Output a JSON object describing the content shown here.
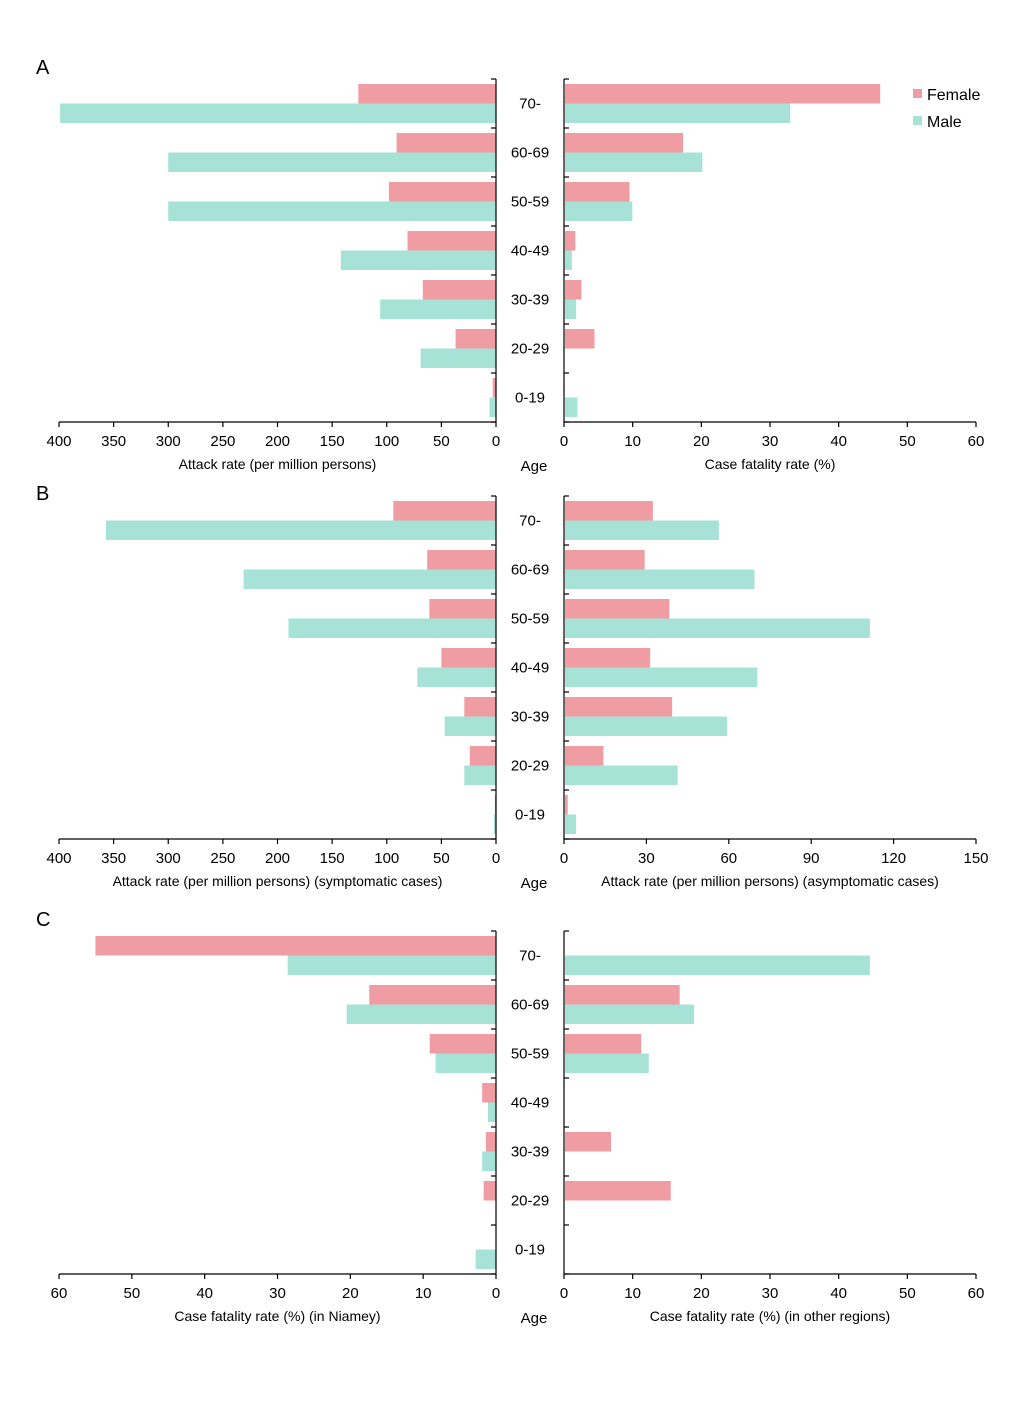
{
  "colors": {
    "female": "#f09ca3",
    "male": "#a6e3d6",
    "axis": "#000000"
  },
  "legend": {
    "female": "Female",
    "male": "Male"
  },
  "chart_data": [
    {
      "panel": "A",
      "type": "bar",
      "orientation": "horizontal-butterfly",
      "categories": [
        "70-",
        "60-69",
        "50-59",
        "40-49",
        "30-39",
        "20-29",
        "0-19"
      ],
      "center_label": "Age",
      "left": {
        "xlabel": "Attack rate (per million persons)",
        "xlim": [
          0,
          400
        ],
        "ticks": [
          400,
          350,
          300,
          250,
          200,
          150,
          100,
          50,
          0
        ],
        "series": [
          {
            "name": "Female",
            "values": [
              126,
              91,
              98,
              81,
              67,
              37,
              3
            ]
          },
          {
            "name": "Male",
            "values": [
              399,
              300,
              300,
              142,
              106,
              69,
              6
            ]
          }
        ]
      },
      "right": {
        "xlabel": "Case fatality rate (%)",
        "xlim": [
          0,
          60
        ],
        "ticks": [
          0,
          10,
          20,
          30,
          40,
          50,
          60
        ],
        "series": [
          {
            "name": "Female",
            "values": [
              45.9,
              17.2,
              9.4,
              1.5,
              2.4,
              4.3,
              0
            ]
          },
          {
            "name": "Male",
            "values": [
              32.8,
              20.0,
              9.8,
              1.0,
              1.6,
              0,
              1.8
            ]
          }
        ]
      }
    },
    {
      "panel": "B",
      "type": "bar",
      "orientation": "horizontal-butterfly",
      "categories": [
        "70-",
        "60-69",
        "50-59",
        "40-49",
        "30-39",
        "20-29",
        "0-19"
      ],
      "center_label": "Age",
      "left": {
        "xlabel": "Attack rate (per million persons) (symptomatic cases)",
        "xlim": [
          0,
          400
        ],
        "ticks": [
          400,
          350,
          300,
          250,
          200,
          150,
          100,
          50,
          0
        ],
        "series": [
          {
            "name": "Female",
            "values": [
              94,
              63,
              61,
              50,
              29,
              24,
              1
            ]
          },
          {
            "name": "Male",
            "values": [
              357,
              231,
              190,
              72,
              47,
              29,
              2
            ]
          }
        ]
      },
      "right": {
        "xlabel": "Attack rate (per million persons) (asymptomatic cases)",
        "xlim": [
          0,
          150
        ],
        "ticks": [
          0,
          30,
          60,
          90,
          120,
          150
        ],
        "series": [
          {
            "name": "Female",
            "values": [
              32,
              29,
              38,
              31,
              39,
              14,
              1
            ]
          },
          {
            "name": "Male",
            "values": [
              56,
              69,
              111,
              70,
              59,
              41,
              4
            ]
          }
        ]
      }
    },
    {
      "panel": "C",
      "type": "bar",
      "orientation": "horizontal-butterfly",
      "categories": [
        "70-",
        "60-69",
        "50-59",
        "40-49",
        "30-39",
        "20-29",
        "0-19"
      ],
      "center_label": "Age",
      "left": {
        "xlabel": "Case fatality rate (%) (in Niamey)",
        "xlim": [
          0,
          60
        ],
        "ticks": [
          60,
          50,
          40,
          30,
          20,
          10,
          0
        ],
        "series": [
          {
            "name": "Female",
            "values": [
              55.0,
              17.4,
              9.1,
              1.9,
              1.4,
              1.7,
              0
            ]
          },
          {
            "name": "Male",
            "values": [
              28.6,
              20.5,
              8.3,
              1.1,
              1.9,
              0,
              2.8
            ]
          }
        ]
      },
      "right": {
        "xlabel": "Case fatality rate (%) (in other regions)",
        "xlim": [
          0,
          60
        ],
        "ticks": [
          0,
          10,
          20,
          30,
          40,
          50,
          60
        ],
        "series": [
          {
            "name": "Female",
            "values": [
              0,
              16.7,
              11.1,
              0,
              6.7,
              15.4,
              0
            ]
          },
          {
            "name": "Male",
            "values": [
              44.4,
              18.8,
              12.2,
              0,
              0,
              0,
              0
            ]
          }
        ]
      }
    }
  ]
}
